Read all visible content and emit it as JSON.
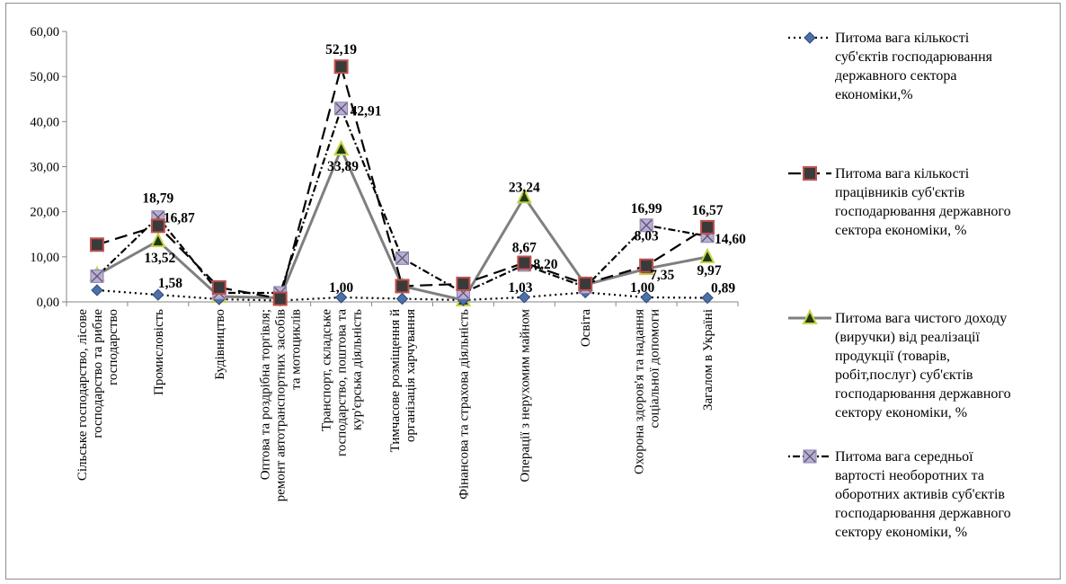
{
  "chart_data": {
    "type": "line",
    "categories": [
      "Сільське господарство, лісове господарство та рибне господарство",
      "Промисловість",
      "Будівництво",
      "Оптова та роздрібна торгівля; ремонт автотранспортних засобів та мотоциклів",
      "Транспорт, складське господарство, поштова та кур'єрська діяльність",
      "Тимчасове розміщення й організація харчування",
      "Фінансова та страхова діяльність",
      "Операції з нерухомим майном",
      "Освіта",
      "Охорона здоров'я та надання соціальної допомоги",
      "Загалом в Україні"
    ],
    "category_lines": [
      [
        "Сільське господарство, лісове",
        "господарство та рибне",
        "господарство"
      ],
      [
        "Промисловість"
      ],
      [
        "Будівництво"
      ],
      [
        "Оптова та роздрібна торгівля;",
        "ремонт автотранспортних засобів",
        "та мотоциклів"
      ],
      [
        "Транспорт, складське",
        "господарство, поштова та",
        "кур'єрська діяльність"
      ],
      [
        "Тимчасове розміщення й",
        "організація харчування"
      ],
      [
        "Фінансова та страхова діяльність"
      ],
      [
        "Операції з нерухомим майном"
      ],
      [
        "Освіта"
      ],
      [
        "Охорона здоров'я та надання",
        "соціальної допомоги"
      ],
      [
        "Загалом в Україні"
      ]
    ],
    "ylim": [
      0,
      60
    ],
    "yticks": [
      "0,00",
      "10,00",
      "20,00",
      "30,00",
      "40,00",
      "50,00",
      "60,00"
    ],
    "grid": false,
    "legend_position": "right",
    "series": [
      {
        "name": "Питома вага кількості суб'єктів господарювання державного сектора економіки,%",
        "legend_lines": [
          "Питома вага кількості",
          "суб'єктів господарювання",
          "державного сектора",
          "економіки,%"
        ],
        "values": [
          2.6,
          1.58,
          0.6,
          0.3,
          1.0,
          0.7,
          0.4,
          1.03,
          2.1,
          1.0,
          0.89
        ],
        "labels": [
          "",
          "1,58",
          "",
          "",
          "1,00",
          "",
          "",
          "1,03",
          "",
          "1,00",
          "0,89"
        ],
        "color": "#1f497d",
        "line_color": "#000000",
        "marker": "diamond",
        "marker_fill": "#4f6fa8",
        "dash": "2,4"
      },
      {
        "name": "Питома вага кількості працівників суб'єктів господарювання державного сектора економіки, %",
        "legend_lines": [
          "Питома вага кількості",
          "працівників  суб'єктів",
          "господарювання державного",
          "сектора економіки, %"
        ],
        "values": [
          12.7,
          16.87,
          3.2,
          0.7,
          52.19,
          3.5,
          4.0,
          8.67,
          4.0,
          8.03,
          16.57
        ],
        "labels": [
          "",
          "16,87",
          "",
          "",
          "52,19",
          "",
          "",
          "8,67",
          "",
          "8,03",
          "16,57"
        ],
        "color": "#c0504d",
        "line_color": "#000000",
        "marker": "square",
        "marker_fill": "#3a3a3a",
        "dash": "14,7"
      },
      {
        "name": "Питома вага чистого доходу (виручки) від реалізації продукції (товарів, робіт,послуг) суб'єктів господарювання державного сектору економіки, %",
        "legend_lines": [
          "Питома вага чистого доходу",
          "(виручки) від реалізації",
          "продукції (товарів,",
          "робіт,послуг) суб'єктів",
          "господарювання державного",
          "сектору економіки, %"
        ],
        "values": [
          6.0,
          13.52,
          1.2,
          0.9,
          33.89,
          3.5,
          0.4,
          23.24,
          3.8,
          7.35,
          9.97
        ],
        "labels": [
          "",
          "13,52",
          "",
          "",
          "33,89",
          "",
          "",
          "23,24",
          "",
          "7,35",
          "9,97"
        ],
        "color": "#808080",
        "line_color": "#7f7f7f",
        "marker": "triangle",
        "marker_fill": "#1e3a10",
        "dash": ""
      },
      {
        "name": "Питома вага середньої вартості необоротних та оборотних активів суб'єктів господарювання державного сектору економіки, %",
        "legend_lines": [
          "Питома вага середньої",
          "вартості необоротних та",
          "оборотних активів суб'єктів",
          "господарювання державного",
          "сектору економіки, %"
        ],
        "values": [
          5.7,
          18.79,
          2.0,
          2.0,
          42.91,
          9.7,
          2.0,
          8.2,
          3.3,
          16.99,
          14.6
        ],
        "labels": [
          "",
          "18,79",
          "",
          "",
          "42,91",
          "",
          "",
          "8,20",
          "",
          "16,99",
          "14,60"
        ],
        "color": "#b7a6c9",
        "line_color": "#000000",
        "marker": "xsquare",
        "marker_fill": "#b9aed3",
        "dash": "2,3,8,3"
      }
    ]
  }
}
